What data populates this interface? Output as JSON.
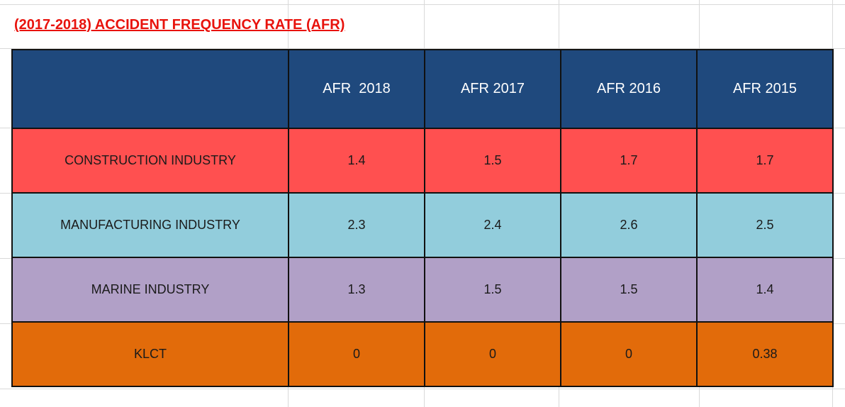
{
  "title": "(2017-2018) ACCIDENT FREQUENCY RATE (AFR)",
  "table": {
    "header_blank": "",
    "columns": [
      "AFR  2018",
      "AFR 2017",
      "AFR 2016",
      "AFR 2015"
    ],
    "rows": [
      {
        "label": "CONSTRUCTION INDUSTRY",
        "values": [
          "1.4",
          "1.5",
          "1.7",
          "1.7"
        ],
        "color": "#ff5050"
      },
      {
        "label": "MANUFACTURING INDUSTRY",
        "values": [
          "2.3",
          "2.4",
          "2.6",
          "2.5"
        ],
        "color": "#92cddc"
      },
      {
        "label": "MARINE INDUSTRY",
        "values": [
          "1.3",
          "1.5",
          "1.5",
          "1.4"
        ],
        "color": "#b1a0c7"
      },
      {
        "label": "KLCT",
        "values": [
          "0",
          "0",
          "0",
          "0.38"
        ],
        "color": "#e26b0a"
      }
    ],
    "header_color": "#1f497d"
  },
  "colors": {
    "title": "#e8120c",
    "gridline": "#d9d9d9"
  }
}
